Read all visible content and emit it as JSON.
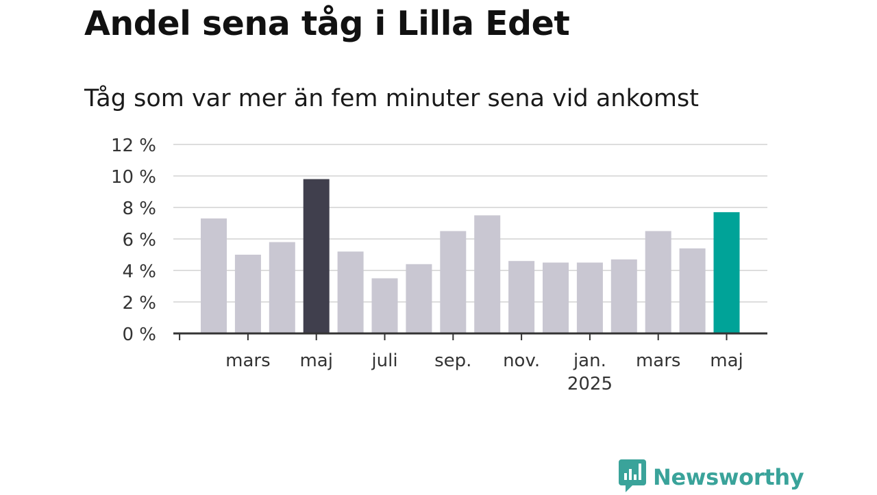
{
  "title": "Andel sena tåg i Lilla Edet",
  "subtitle": "Tåg som var mer än fem minuter sena vid ankomst",
  "brand": {
    "name": "Newsworthy",
    "icon": "newsworthy-logo-icon",
    "color": "#3aa39a"
  },
  "colors": {
    "default_bar": "#c9c7d2",
    "highlight_dark": "#403f4d",
    "highlight_current": "#00a398",
    "gridline": "#dddddd",
    "axis": "#333333"
  },
  "chart_data": {
    "type": "bar",
    "title": "Andel sena tåg i Lilla Edet",
    "subtitle": "Tåg som var mer än fem minuter sena vid ankomst",
    "categories": [
      "2024-02",
      "2024-03",
      "2024-04",
      "2024-05",
      "2024-06",
      "2024-07",
      "2024-08",
      "2024-09",
      "2024-10",
      "2024-11",
      "2024-12",
      "2025-01",
      "2025-02",
      "2025-03",
      "2025-04",
      "2025-05"
    ],
    "values": [
      7.3,
      5.0,
      5.8,
      9.8,
      5.2,
      3.5,
      4.4,
      6.5,
      7.5,
      4.6,
      4.5,
      4.5,
      4.7,
      6.5,
      5.4,
      7.7
    ],
    "bar_colors": [
      "default",
      "default",
      "default",
      "highlight_dark",
      "default",
      "default",
      "default",
      "default",
      "default",
      "default",
      "default",
      "default",
      "default",
      "default",
      "default",
      "highlight_current"
    ],
    "ylim": [
      0,
      12
    ],
    "yticks": [
      0,
      2,
      4,
      6,
      8,
      10,
      12
    ],
    "ytick_labels": [
      "0 %",
      "2 %",
      "4 %",
      "6 %",
      "8 %",
      "10 %",
      "12 %"
    ],
    "xtick_labels": [
      {
        "category": "2024-03",
        "label": "mars"
      },
      {
        "category": "2024-05",
        "label": "maj"
      },
      {
        "category": "2024-07",
        "label": "juli"
      },
      {
        "category": "2024-09",
        "label": "sep."
      },
      {
        "category": "2024-11",
        "label": "nov."
      },
      {
        "category": "2025-01",
        "label": "jan.",
        "label2": "2025"
      },
      {
        "category": "2025-03",
        "label": "mars"
      },
      {
        "category": "2025-05",
        "label": "maj"
      }
    ],
    "xlabel": "",
    "ylabel": "",
    "grid": true,
    "legend": "none"
  }
}
